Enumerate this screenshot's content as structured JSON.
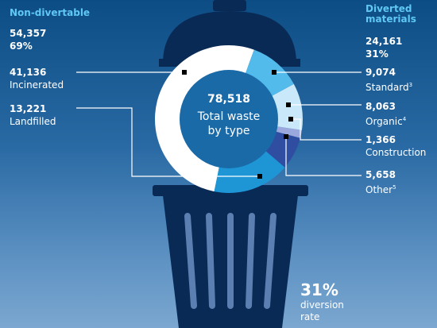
{
  "chart_data": {
    "type": "donut",
    "center_value": 78518,
    "center_value_label": "78,518",
    "center_label": "Total waste by type",
    "categories": [
      "Incinerated",
      "Landfilled",
      "Other",
      "Construction",
      "Organic",
      "Standard"
    ],
    "footnotes": [
      null,
      null,
      "5",
      null,
      "4",
      "3"
    ],
    "values": [
      41136,
      13221,
      5658,
      1366,
      8063,
      9074
    ],
    "value_labels": [
      "41,136",
      "13,221",
      "5,658",
      "1,366",
      "8,063",
      "9,074"
    ],
    "colors": [
      "#ffffff",
      "#1e96d6",
      "#2f4ea2",
      "#9ba8de",
      "#c9e8f9",
      "#52bbec"
    ],
    "groups": [
      {
        "name": "Non-divertable",
        "total": 54357,
        "total_label": "54,357",
        "share": "69%"
      },
      {
        "name": "Diverted materials",
        "total": 24161,
        "total_label": "24,161",
        "share": "31%"
      }
    ],
    "diversion_rate": "31%",
    "diversion_label": "diversion rate"
  }
}
